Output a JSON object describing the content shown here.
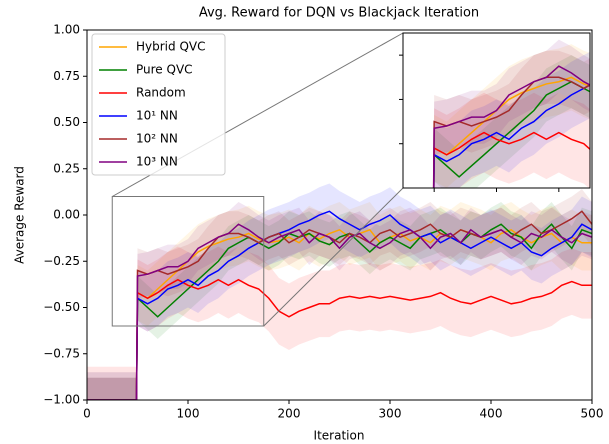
{
  "chart_data": {
    "type": "line",
    "title": "Avg. Reward for DQN vs Blackjack Iteration",
    "x_label": "Iteration",
    "y_label": "Average Reward",
    "x": [
      0,
      49,
      50,
      60,
      70,
      80,
      90,
      100,
      110,
      120,
      130,
      140,
      150,
      160,
      170,
      180,
      190,
      200,
      210,
      220,
      230,
      240,
      250,
      260,
      270,
      280,
      290,
      300,
      310,
      320,
      330,
      340,
      350,
      360,
      370,
      380,
      390,
      400,
      410,
      420,
      430,
      440,
      450,
      460,
      470,
      480,
      490,
      500
    ],
    "series": [
      {
        "name": "Hybrid QVC",
        "color": "#ffa500",
        "std": 0.15,
        "values": [
          -1,
          -1,
          -0.42,
          -0.45,
          -0.4,
          -0.35,
          -0.3,
          -0.25,
          -0.2,
          -0.17,
          -0.15,
          -0.13,
          -0.12,
          -0.1,
          -0.13,
          -0.15,
          -0.14,
          -0.12,
          -0.15,
          -0.1,
          -0.13,
          -0.1,
          -0.08,
          -0.12,
          -0.1,
          -0.08,
          -0.15,
          -0.12,
          -0.1,
          -0.14,
          -0.12,
          -0.15,
          -0.1,
          -0.12,
          -0.08,
          -0.1,
          -0.12,
          -0.15,
          -0.1,
          -0.08,
          -0.12,
          -0.15,
          -0.12,
          -0.1,
          -0.15,
          -0.12,
          -0.15,
          -0.15
        ]
      },
      {
        "name": "Pure QVC",
        "color": "#008000",
        "std": 0.12,
        "values": [
          -1,
          -1,
          -0.45,
          -0.5,
          -0.55,
          -0.5,
          -0.45,
          -0.4,
          -0.35,
          -0.3,
          -0.25,
          -0.18,
          -0.15,
          -0.12,
          -0.15,
          -0.18,
          -0.15,
          -0.1,
          -0.12,
          -0.1,
          -0.14,
          -0.16,
          -0.12,
          -0.1,
          -0.15,
          -0.2,
          -0.15,
          -0.12,
          -0.15,
          -0.18,
          -0.12,
          -0.1,
          -0.08,
          -0.12,
          -0.15,
          -0.1,
          -0.12,
          -0.08,
          -0.05,
          -0.1,
          -0.12,
          -0.18,
          -0.1,
          -0.05,
          -0.12,
          -0.18,
          -0.08,
          -0.1
        ]
      },
      {
        "name": "Random",
        "color": "#ff0000",
        "std": 0.18,
        "values": [
          -1,
          -1,
          -0.42,
          -0.45,
          -0.42,
          -0.38,
          -0.35,
          -0.38,
          -0.4,
          -0.38,
          -0.35,
          -0.38,
          -0.35,
          -0.38,
          -0.4,
          -0.45,
          -0.52,
          -0.55,
          -0.52,
          -0.5,
          -0.48,
          -0.48,
          -0.45,
          -0.44,
          -0.45,
          -0.44,
          -0.45,
          -0.44,
          -0.45,
          -0.46,
          -0.45,
          -0.44,
          -0.42,
          -0.45,
          -0.47,
          -0.48,
          -0.46,
          -0.44,
          -0.46,
          -0.48,
          -0.47,
          -0.45,
          -0.44,
          -0.42,
          -0.38,
          -0.36,
          -0.38,
          -0.38
        ]
      },
      {
        "name": "10¹ NN",
        "color": "#0000ff",
        "std": 0.15,
        "values": [
          -1,
          -1,
          -0.45,
          -0.48,
          -0.45,
          -0.4,
          -0.38,
          -0.35,
          -0.38,
          -0.33,
          -0.3,
          -0.25,
          -0.22,
          -0.18,
          -0.15,
          -0.12,
          -0.1,
          -0.08,
          -0.05,
          -0.03,
          0.0,
          0.02,
          -0.02,
          -0.05,
          -0.08,
          -0.05,
          -0.03,
          0.0,
          -0.05,
          -0.08,
          -0.12,
          -0.1,
          -0.15,
          -0.12,
          -0.15,
          -0.18,
          -0.15,
          -0.12,
          -0.15,
          -0.18,
          -0.15,
          -0.2,
          -0.22,
          -0.18,
          -0.15,
          -0.12,
          -0.05,
          -0.08
        ]
      },
      {
        "name": "10² NN",
        "color": "#a52a2a",
        "std": 0.12,
        "values": [
          -1,
          -1,
          -0.3,
          -0.32,
          -0.3,
          -0.32,
          -0.3,
          -0.28,
          -0.25,
          -0.18,
          -0.12,
          -0.1,
          -0.1,
          -0.12,
          -0.15,
          -0.12,
          -0.1,
          -0.15,
          -0.12,
          -0.08,
          -0.1,
          -0.12,
          -0.15,
          -0.1,
          -0.12,
          -0.15,
          -0.1,
          -0.08,
          -0.12,
          -0.1,
          -0.08,
          -0.05,
          -0.1,
          -0.12,
          -0.08,
          -0.1,
          -0.12,
          -0.1,
          -0.08,
          -0.12,
          -0.08,
          -0.05,
          -0.1,
          -0.08,
          -0.05,
          -0.02,
          0.02,
          -0.05
        ]
      },
      {
        "name": "10³ NN",
        "color": "#800080",
        "std": 0.12,
        "values": [
          -1,
          -1,
          -0.33,
          -0.32,
          -0.3,
          -0.28,
          -0.28,
          -0.25,
          -0.18,
          -0.15,
          -0.12,
          -0.1,
          -0.05,
          -0.08,
          -0.12,
          -0.15,
          -0.12,
          -0.1,
          -0.08,
          -0.15,
          -0.1,
          -0.12,
          -0.18,
          -0.12,
          -0.1,
          -0.15,
          -0.18,
          -0.15,
          -0.1,
          -0.08,
          -0.12,
          -0.18,
          -0.12,
          -0.1,
          -0.15,
          -0.08,
          -0.12,
          -0.1,
          -0.08,
          -0.12,
          -0.15,
          -0.1,
          -0.12,
          -0.08,
          -0.12,
          -0.15,
          -0.1,
          -0.12
        ]
      }
    ],
    "xlim": [
      0,
      500
    ],
    "xticks": [
      0,
      100,
      200,
      300,
      400,
      500
    ],
    "ylim": [
      -1,
      1
    ],
    "yticks": [
      {
        "value": -1,
        "label": "−1.00"
      },
      {
        "value": -0.75,
        "label": "−0.75"
      },
      {
        "value": -0.5,
        "label": "−0.50"
      },
      {
        "value": -0.25,
        "label": "−0.25"
      },
      {
        "value": 0,
        "label": "0.00"
      },
      {
        "value": 0.25,
        "label": "0.25"
      },
      {
        "value": 0.5,
        "label": "0.50"
      },
      {
        "value": 0.75,
        "label": "0.75"
      },
      {
        "value": 1,
        "label": "1.00"
      }
    ],
    "legend": "upper left",
    "inset": {
      "xlim": [
        25,
        175
      ],
      "ylim": [
        -0.6,
        0.1
      ],
      "xticks": [
        50,
        100,
        150
      ],
      "yticks": [
        -0.4,
        -0.2,
        0
      ]
    }
  }
}
